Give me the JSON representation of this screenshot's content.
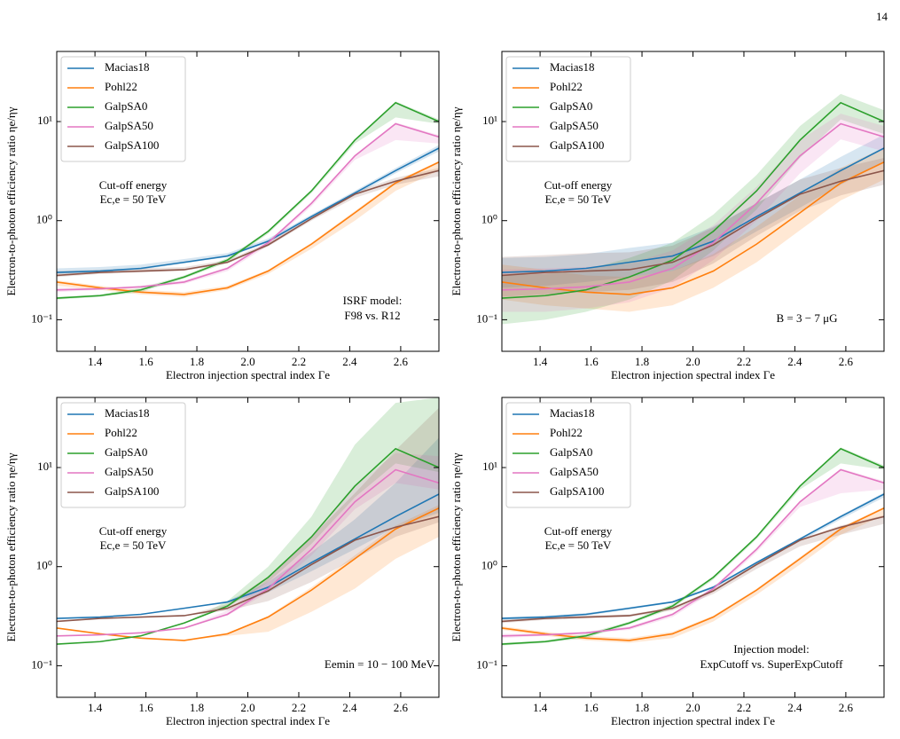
{
  "page_number": "14",
  "chart_data": [
    {
      "type": "line",
      "log": "y",
      "legend": "upper left",
      "xlabel": "Electron injection spectral index Γe",
      "ylabel": "Electron-to-photon efficiency ratio ηe/ηγ",
      "xlim": [
        1.25,
        2.75
      ],
      "ylim": [
        0.048,
        51
      ],
      "xticks": [
        1.4,
        1.6,
        1.8,
        {
          "value": 2,
          "label": "2.0"
        },
        2.2,
        2.4,
        2.6
      ],
      "yticks": [
        {
          "value": 0.1,
          "label": "10⁻¹"
        },
        {
          "value": 1,
          "label": "10⁰"
        },
        {
          "value": 10,
          "label": "10¹"
        }
      ],
      "annotations": [
        "Cut-off energy",
        "Ec,e = 50 TeV"
      ],
      "notes": [
        "ISRF model:",
        "F98 vs. R12"
      ],
      "x": [
        1.25,
        1.42,
        1.58,
        1.75,
        1.92,
        2.08,
        2.25,
        2.42,
        2.58,
        2.75
      ],
      "series": [
        {
          "name": "Macias18",
          "color": "#1f77b4",
          "values": [
            0.3,
            0.31,
            0.33,
            0.38,
            0.44,
            0.62,
            1.1,
            1.9,
            3.2,
            5.4
          ],
          "lower": [
            0.29,
            0.3,
            0.32,
            0.37,
            0.43,
            0.6,
            1.05,
            1.8,
            3.0,
            5.0
          ],
          "upper": [
            0.33,
            0.34,
            0.36,
            0.41,
            0.47,
            0.66,
            1.15,
            2.0,
            3.4,
            5.8
          ]
        },
        {
          "name": "Pohl22",
          "color": "#ff7f0e",
          "values": [
            0.24,
            0.21,
            0.19,
            0.18,
            0.21,
            0.31,
            0.58,
            1.2,
            2.4,
            3.9
          ],
          "lower": [
            0.22,
            0.2,
            0.18,
            0.17,
            0.2,
            0.29,
            0.52,
            1.0,
            2.0,
            3.2
          ],
          "upper": [
            0.25,
            0.22,
            0.2,
            0.19,
            0.22,
            0.32,
            0.6,
            1.25,
            2.5,
            4.0
          ]
        },
        {
          "name": "GalpSA0",
          "color": "#2ca02c",
          "values": [
            0.165,
            0.175,
            0.2,
            0.27,
            0.4,
            0.78,
            2.0,
            6.5,
            15.5,
            10
          ],
          "lower": [
            0.16,
            0.17,
            0.19,
            0.26,
            0.38,
            0.74,
            1.9,
            6.0,
            11,
            9.5
          ],
          "upper": [
            0.17,
            0.18,
            0.21,
            0.28,
            0.42,
            0.8,
            2.05,
            6.6,
            16,
            10.5
          ]
        },
        {
          "name": "GalpSA50",
          "color": "#e377c2",
          "values": [
            0.2,
            0.205,
            0.215,
            0.24,
            0.33,
            0.6,
            1.5,
            4.5,
            9.5,
            7.0
          ],
          "lower": [
            0.19,
            0.2,
            0.21,
            0.23,
            0.31,
            0.56,
            1.4,
            4.1,
            6.5,
            6.0
          ],
          "upper": [
            0.21,
            0.21,
            0.22,
            0.25,
            0.34,
            0.62,
            1.55,
            4.6,
            9.8,
            7.3
          ]
        },
        {
          "name": "GalpSA100",
          "color": "#8c564b",
          "values": [
            0.28,
            0.3,
            0.31,
            0.32,
            0.38,
            0.57,
            1.05,
            1.85,
            2.5,
            3.2
          ],
          "lower": [
            0.27,
            0.29,
            0.3,
            0.31,
            0.37,
            0.55,
            1.0,
            1.7,
            2.3,
            2.8
          ],
          "upper": [
            0.31,
            0.32,
            0.33,
            0.34,
            0.4,
            0.6,
            1.1,
            1.95,
            2.7,
            3.4
          ]
        }
      ]
    },
    {
      "type": "line",
      "log": "y",
      "legend": "upper left",
      "xlabel": "Electron injection spectral index Γe",
      "ylabel": "Electron-to-photon efficiency ratio ηe/ηγ",
      "xlim": [
        1.25,
        2.75
      ],
      "ylim": [
        0.048,
        51
      ],
      "xticks": [
        1.4,
        1.6,
        1.8,
        {
          "value": 2,
          "label": "2.0"
        },
        2.2,
        2.4,
        2.6
      ],
      "yticks": [
        {
          "value": 0.1,
          "label": "10⁻¹"
        },
        {
          "value": 1,
          "label": "10⁰"
        },
        {
          "value": 10,
          "label": "10¹"
        }
      ],
      "annotations": [
        "Cut-off energy",
        "Ec,e = 50 TeV"
      ],
      "notes": [
        "B = 3 − 7 μG"
      ],
      "x": [
        1.25,
        1.42,
        1.58,
        1.75,
        1.92,
        2.08,
        2.25,
        2.42,
        2.58,
        2.75
      ],
      "series": [
        {
          "name": "Macias18",
          "color": "#1f77b4",
          "values": [
            0.3,
            0.31,
            0.33,
            0.38,
            0.44,
            0.62,
            1.1,
            1.9,
            3.2,
            5.4
          ],
          "lower": [
            0.21,
            0.22,
            0.24,
            0.27,
            0.31,
            0.44,
            0.78,
            1.35,
            2.3,
            3.9
          ],
          "upper": [
            0.42,
            0.43,
            0.46,
            0.53,
            0.6,
            0.87,
            1.5,
            2.6,
            4.4,
            7.4
          ]
        },
        {
          "name": "Pohl22",
          "color": "#ff7f0e",
          "values": [
            0.24,
            0.21,
            0.19,
            0.18,
            0.21,
            0.31,
            0.58,
            1.2,
            2.4,
            3.9
          ],
          "lower": [
            0.16,
            0.14,
            0.13,
            0.12,
            0.14,
            0.21,
            0.38,
            0.8,
            1.6,
            2.6
          ],
          "upper": [
            0.36,
            0.32,
            0.28,
            0.27,
            0.31,
            0.46,
            0.87,
            1.8,
            3.4,
            5.5
          ]
        },
        {
          "name": "GalpSA0",
          "color": "#2ca02c",
          "values": [
            0.165,
            0.175,
            0.2,
            0.27,
            0.4,
            0.78,
            2.0,
            6.5,
            15.5,
            10
          ],
          "lower": [
            0.09,
            0.1,
            0.12,
            0.16,
            0.25,
            0.5,
            1.3,
            4.3,
            10.5,
            7.5
          ],
          "upper": [
            0.28,
            0.29,
            0.32,
            0.42,
            0.6,
            1.15,
            2.9,
            9.0,
            19,
            13
          ]
        },
        {
          "name": "GalpSA50",
          "color": "#e377c2",
          "values": [
            0.2,
            0.205,
            0.215,
            0.24,
            0.33,
            0.6,
            1.5,
            4.5,
            9.5,
            7.0
          ],
          "lower": [
            0.12,
            0.12,
            0.13,
            0.15,
            0.21,
            0.4,
            1.0,
            3.0,
            6.6,
            5.0
          ],
          "upper": [
            0.32,
            0.33,
            0.34,
            0.37,
            0.5,
            0.9,
            2.2,
            6.5,
            12,
            9
          ]
        },
        {
          "name": "GalpSA100",
          "color": "#8c564b",
          "values": [
            0.28,
            0.3,
            0.31,
            0.32,
            0.38,
            0.57,
            1.05,
            1.85,
            2.5,
            3.2
          ],
          "lower": [
            0.17,
            0.18,
            0.19,
            0.2,
            0.24,
            0.37,
            0.7,
            1.25,
            1.8,
            2.3
          ],
          "upper": [
            0.43,
            0.45,
            0.47,
            0.48,
            0.56,
            0.85,
            1.5,
            2.6,
            3.4,
            4.3
          ]
        }
      ]
    },
    {
      "type": "line",
      "log": "y",
      "legend": "upper left",
      "xlabel": "Electron injection spectral index Γe",
      "ylabel": "Electron-to-photon efficiency ratio ηe/ηγ",
      "xlim": [
        1.25,
        2.75
      ],
      "ylim": [
        0.048,
        51
      ],
      "xticks": [
        1.4,
        1.6,
        1.8,
        {
          "value": 2,
          "label": "2.0"
        },
        2.2,
        2.4,
        2.6
      ],
      "yticks": [
        {
          "value": 0.1,
          "label": "10⁻¹"
        },
        {
          "value": 1,
          "label": "10⁰"
        },
        {
          "value": 10,
          "label": "10¹"
        }
      ],
      "annotations": [
        "Cut-off energy",
        "Ec,e = 50 TeV"
      ],
      "notes": [
        "Eemin = 10 − 100 MeV"
      ],
      "x": [
        1.25,
        1.42,
        1.58,
        1.75,
        1.92,
        2.08,
        2.25,
        2.42,
        2.58,
        2.75
      ],
      "series": [
        {
          "name": "Macias18",
          "color": "#1f77b4",
          "values": [
            0.3,
            0.31,
            0.33,
            0.38,
            0.44,
            0.62,
            1.1,
            1.9,
            3.2,
            5.4
          ],
          "lower": [
            0.3,
            0.31,
            0.33,
            0.38,
            0.43,
            0.55,
            0.9,
            1.5,
            2.5,
            3.5
          ],
          "upper": [
            0.3,
            0.31,
            0.33,
            0.38,
            0.45,
            0.7,
            1.4,
            3.0,
            7,
            20
          ]
        },
        {
          "name": "Pohl22",
          "color": "#ff7f0e",
          "values": [
            0.24,
            0.21,
            0.19,
            0.18,
            0.21,
            0.31,
            0.58,
            1.2,
            2.4,
            3.9
          ],
          "lower": [
            0.24,
            0.21,
            0.19,
            0.18,
            0.2,
            0.22,
            0.35,
            0.6,
            1.2,
            2.0
          ],
          "upper": [
            0.24,
            0.21,
            0.19,
            0.18,
            0.21,
            0.32,
            0.62,
            1.3,
            2.6,
            4.2
          ]
        },
        {
          "name": "GalpSA0",
          "color": "#2ca02c",
          "values": [
            0.165,
            0.175,
            0.2,
            0.27,
            0.4,
            0.78,
            2.0,
            6.5,
            15.5,
            10
          ],
          "lower": [
            0.165,
            0.175,
            0.2,
            0.27,
            0.39,
            0.7,
            1.7,
            5,
            11,
            9
          ],
          "upper": [
            0.165,
            0.175,
            0.2,
            0.27,
            0.45,
            1.0,
            3.2,
            17,
            45,
            51
          ]
        },
        {
          "name": "GalpSA50",
          "color": "#e377c2",
          "values": [
            0.2,
            0.205,
            0.215,
            0.24,
            0.33,
            0.6,
            1.5,
            4.5,
            9.5,
            7.0
          ],
          "lower": [
            0.2,
            0.205,
            0.215,
            0.24,
            0.32,
            0.55,
            1.3,
            3.8,
            7,
            6
          ],
          "upper": [
            0.2,
            0.205,
            0.215,
            0.24,
            0.36,
            0.75,
            2.0,
            6.5,
            14,
            13
          ]
        },
        {
          "name": "GalpSA100",
          "color": "#8c564b",
          "values": [
            0.28,
            0.3,
            0.31,
            0.32,
            0.38,
            0.57,
            1.05,
            1.85,
            2.5,
            3.2
          ],
          "lower": [
            0.28,
            0.3,
            0.31,
            0.32,
            0.36,
            0.45,
            0.7,
            1.2,
            2.0,
            2.8
          ],
          "upper": [
            0.28,
            0.3,
            0.31,
            0.32,
            0.42,
            0.8,
            2.0,
            5.5,
            15,
            40
          ]
        }
      ]
    },
    {
      "type": "line",
      "log": "y",
      "legend": "upper left",
      "xlabel": "Electron injection spectral index Γe",
      "ylabel": "Electron-to-photon efficiency ratio ηe/ηγ",
      "xlim": [
        1.25,
        2.75
      ],
      "ylim": [
        0.048,
        51
      ],
      "xticks": [
        1.4,
        1.6,
        1.8,
        {
          "value": 2,
          "label": "2.0"
        },
        2.2,
        2.4,
        2.6
      ],
      "yticks": [
        {
          "value": 0.1,
          "label": "10⁻¹"
        },
        {
          "value": 1,
          "label": "10⁰"
        },
        {
          "value": 10,
          "label": "10¹"
        }
      ],
      "annotations": [
        "Cut-off energy",
        "Ec,e = 50 TeV"
      ],
      "notes": [
        "Injection model:",
        "ExpCutoff vs. SuperExpCutoff"
      ],
      "x": [
        1.25,
        1.42,
        1.58,
        1.75,
        1.92,
        2.08,
        2.25,
        2.42,
        2.58,
        2.75
      ],
      "series": [
        {
          "name": "Macias18",
          "color": "#1f77b4",
          "values": [
            0.3,
            0.31,
            0.33,
            0.38,
            0.44,
            0.62,
            1.1,
            1.9,
            3.2,
            5.4
          ],
          "lower": [
            0.29,
            0.3,
            0.32,
            0.37,
            0.43,
            0.6,
            1.05,
            1.8,
            3.0,
            5.0
          ],
          "upper": [
            0.31,
            0.32,
            0.34,
            0.39,
            0.45,
            0.64,
            1.12,
            1.95,
            3.3,
            5.6
          ]
        },
        {
          "name": "Pohl22",
          "color": "#ff7f0e",
          "values": [
            0.24,
            0.21,
            0.19,
            0.18,
            0.21,
            0.31,
            0.58,
            1.2,
            2.4,
            3.9
          ],
          "lower": [
            0.23,
            0.2,
            0.18,
            0.17,
            0.19,
            0.28,
            0.52,
            1.05,
            2.1,
            3.3
          ],
          "upper": [
            0.25,
            0.22,
            0.2,
            0.19,
            0.22,
            0.32,
            0.6,
            1.25,
            2.5,
            4.0
          ]
        },
        {
          "name": "GalpSA0",
          "color": "#2ca02c",
          "values": [
            0.165,
            0.175,
            0.2,
            0.27,
            0.4,
            0.78,
            2.0,
            6.5,
            15.5,
            10
          ],
          "lower": [
            0.16,
            0.17,
            0.19,
            0.26,
            0.38,
            0.74,
            1.9,
            6.0,
            11,
            9.5
          ],
          "upper": [
            0.17,
            0.18,
            0.21,
            0.28,
            0.42,
            0.8,
            2.05,
            6.6,
            16,
            10.5
          ]
        },
        {
          "name": "GalpSA50",
          "color": "#e377c2",
          "values": [
            0.2,
            0.205,
            0.215,
            0.24,
            0.33,
            0.6,
            1.5,
            4.5,
            9.5,
            7.0
          ],
          "lower": [
            0.19,
            0.2,
            0.21,
            0.23,
            0.31,
            0.56,
            1.4,
            4.0,
            5.5,
            6.0
          ],
          "upper": [
            0.21,
            0.21,
            0.22,
            0.25,
            0.34,
            0.62,
            1.55,
            4.6,
            9.8,
            7.3
          ]
        },
        {
          "name": "GalpSA100",
          "color": "#8c564b",
          "values": [
            0.28,
            0.3,
            0.31,
            0.32,
            0.38,
            0.57,
            1.05,
            1.85,
            2.5,
            3.2
          ],
          "lower": [
            0.27,
            0.29,
            0.3,
            0.31,
            0.36,
            0.53,
            0.95,
            1.6,
            2.1,
            2.7
          ],
          "upper": [
            0.29,
            0.31,
            0.32,
            0.33,
            0.39,
            0.59,
            1.08,
            1.9,
            2.6,
            3.3
          ]
        }
      ]
    }
  ]
}
